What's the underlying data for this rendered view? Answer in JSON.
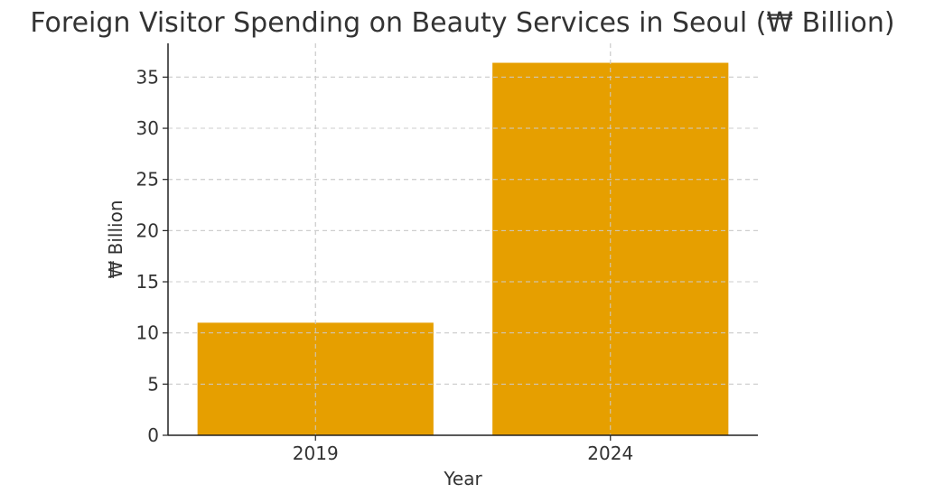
{
  "chart_data": {
    "type": "bar",
    "title": "Foreign Visitor Spending on Beauty Services in Seoul (₩ Billion)",
    "xlabel": "Year",
    "ylabel": "₩ Billion",
    "categories": [
      "2019",
      "2024"
    ],
    "values": [
      11.0,
      36.4
    ],
    "ylim": [
      0,
      38.3
    ],
    "yticks": [
      0,
      5,
      10,
      15,
      20,
      25,
      30,
      35
    ],
    "grid": true,
    "bar_color": "#E69F00",
    "grid_color": "#cccccc"
  }
}
